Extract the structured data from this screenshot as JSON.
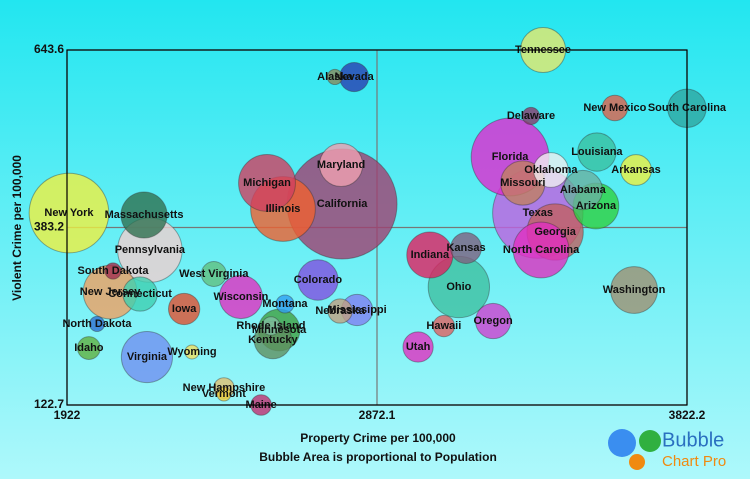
{
  "chart_data": {
    "type": "bubble",
    "x_label": "Property Crime per 100,000",
    "subtitle": "Bubble Area is proportional to Population",
    "y_label": "Violent Crime per 100,000",
    "xlim": [
      1922,
      3822.2
    ],
    "ylim": [
      122.7,
      643.6
    ],
    "xticks": [
      1922,
      2872.1,
      3822.2
    ],
    "yticks": [
      122.7,
      383.2,
      643.6
    ],
    "grid": true,
    "labels": [
      "Nevada",
      "Alaska",
      "Tennessee",
      "New Mexico",
      "South Carolina",
      "Delaware",
      "Florida",
      "Louisiana",
      "Oklahoma",
      "Arkansas",
      "Missouri",
      "Alabama",
      "Arizona",
      "Texas",
      "Georgia",
      "North Carolina",
      "Washington",
      "Maryland",
      "California",
      "Michigan",
      "Illinois",
      "New York",
      "Massachusetts",
      "Pennsylvania",
      "South Dakota",
      "West Virginia",
      "New Jersey",
      "Connecticut",
      "Iowa",
      "Wisconsin",
      "Colorado",
      "North Dakota",
      "Montana",
      "Rhode Island",
      "Minnesota",
      "Mississippi",
      "Nebraska",
      "Kentucky",
      "Idaho",
      "Virginia",
      "Wyoming",
      "Utah",
      "New Hampshire",
      "Vermont",
      "Maine",
      "Indiana",
      "Kansas",
      "Ohio",
      "Hawaii",
      "Oregon"
    ],
    "x": [
      2802,
      2743,
      3381,
      3601,
      3822,
      3344,
      3280,
      3546,
      3405,
      3666,
      3319,
      3503,
      3543,
      3365,
      3418,
      3375,
      3660,
      2762,
      2765,
      2535,
      2584,
      1928,
      2158,
      2176,
      2063,
      2372,
      2054,
      2146,
      2281,
      2455,
      2691,
      2014,
      2590,
      2547,
      2572,
      2811,
      2759,
      2553,
      1989,
      2167,
      2305,
      2998,
      2403,
      2403,
      2517,
      3034,
      3145,
      3123,
      3077,
      3228
    ],
    "values": [
      603.9,
      604,
      643.6,
      558.5,
      558,
      546.8,
      486.6,
      493.9,
      467.5,
      467.5,
      448.5,
      438.2,
      414.7,
      404.4,
      376.5,
      350.1,
      291.4,
      474.9,
      417.6,
      448.5,
      410.3,
      404.4,
      401.5,
      350,
      319.3,
      314.9,
      288.5,
      285.6,
      263.6,
      281.2,
      306.1,
      241.6,
      270.9,
      238.6,
      232.7,
      262.1,
      260.6,
      218.1,
      206.3,
      193.1,
      200.5,
      207.8,
      147.6,
      138.8,
      122.7,
      342.8,
      353,
      295.8,
      238.6,
      245.9
    ],
    "sizes": [
      2.6,
      0.7,
      6.2,
      2,
      4.5,
      0.9,
      18.5,
      4.5,
      3.7,
      2.9,
      6,
      4.7,
      6.4,
      25,
      9.7,
      9.5,
      6.7,
      5.7,
      37,
      9.9,
      12.8,
      19.4,
      6.5,
      12.7,
      0.8,
      1.9,
      8.8,
      3.6,
      3,
      5.7,
      5,
      0.7,
      1,
      1.05,
      5.3,
      3,
      1.8,
      4.3,
      1.6,
      8,
      0.6,
      2.8,
      1.3,
      0.6,
      1.3,
      6.5,
      2.9,
      11.5,
      1.4,
      3.8
    ],
    "colors": [
      "#2a3fb0",
      "#8a8a5a",
      "#e8e86a",
      "#e0604a",
      "#2ea6a0",
      "#8a3a6a",
      "#e02ad0",
      "#3ac0a0",
      "#f0f0f0",
      "#f0f040",
      "#c08060",
      "#6ab0a0",
      "#30d040",
      "#c060e0",
      "#c06060",
      "#e030c0",
      "#a09070",
      "#f0a0b0",
      "#a04070",
      "#d04060",
      "#f06030",
      "#f0f040",
      "#307050",
      "#f0d0d0",
      "#a03050",
      "#60c080",
      "#f0a060",
      "#40d0b0",
      "#e05030",
      "#e030c0",
      "#8050e0",
      "#3070d0",
      "#30a0f0",
      "#80c0a0",
      "#40a040",
      "#8080f0",
      "#c0a080",
      "#609060",
      "#60b040",
      "#7090f0",
      "#f0e060",
      "#e030c0",
      "#e0c070",
      "#f0d040",
      "#c03070",
      "#e02060",
      "#806080",
      "#40c0a0",
      "#e06060",
      "#d040d0"
    ]
  },
  "logo": {
    "line1": "Bubble",
    "line2": "Chart Pro"
  }
}
